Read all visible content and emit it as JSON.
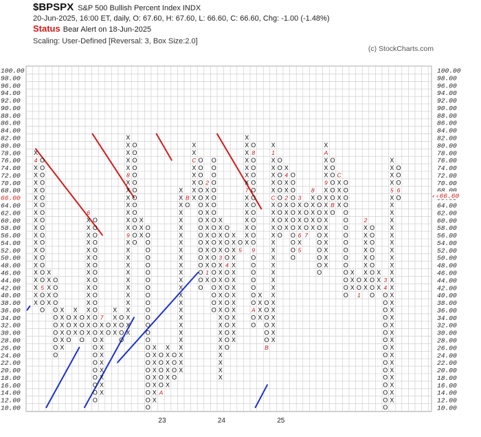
{
  "header": {
    "symbol": "$BPSPX",
    "description": "S&P 500 Bullish Percent Index  INDX",
    "quote": "20-Jun-2025, 16:00 ET, daily, O: 67.60, H: 67.60, L: 66.60, C: 66.60, Chg: -1.00 (-1.48%)",
    "status_label": "Status",
    "status_text": "Bear Alert on 18-Jun-2025",
    "scaling": "Scaling: User-Defined [Reversal: 3, Box Size:2.0]",
    "copyright": "(c) StockCharts.com"
  },
  "chart_data": {
    "type": "point-and-figure",
    "box_size": 2,
    "reversal": 3,
    "ylim": [
      10,
      100
    ],
    "y_ticks": [
      "10.00",
      "12.00",
      "14.00",
      "16.00",
      "18.00",
      "20.00",
      "22.00",
      "24.00",
      "26.00",
      "28.00",
      "30.00",
      "32.00",
      "34.00",
      "36.00",
      "38.00",
      "40.00",
      "42.00",
      "44.00",
      "46.00",
      "48.00",
      "50.00",
      "52.00",
      "54.00",
      "56.00",
      "58.00",
      "60.00",
      "62.00",
      "64.00",
      "66.00",
      "68.00",
      "70.00",
      "72.00",
      "74.00",
      "76.00",
      "78.00",
      "80.00",
      "82.00",
      "84.00",
      "86.00",
      "88.00",
      "90.00",
      "92.00",
      "94.00",
      "96.00",
      "98.00",
      "100.00"
    ],
    "current_label_left": "66.00",
    "current_label_right": "66.60",
    "x_labels": [
      {
        "label": "23",
        "col": 19
      },
      {
        "label": "24",
        "col": 28
      },
      {
        "label": "25",
        "col": 37
      }
    ],
    "columns": [
      {
        "t": "X",
        "from": 38,
        "to": 78,
        "marks": {
          "76": "4"
        }
      },
      {
        "t": "O",
        "from": 36,
        "to": 76,
        "marks": {
          "42": "5"
        }
      },
      {
        "t": "X",
        "from": 38,
        "to": 46
      },
      {
        "t": "O",
        "from": 24,
        "to": 44
      },
      {
        "t": "X",
        "from": 26,
        "to": 36
      },
      {
        "t": "O",
        "from": 28,
        "to": 34
      },
      {
        "t": "X",
        "from": 30,
        "to": 36
      },
      {
        "t": "O",
        "from": 28,
        "to": 34
      },
      {
        "t": "X",
        "from": 30,
        "to": 62,
        "marks": {
          "62": "6"
        }
      },
      {
        "t": "O",
        "from": 12,
        "to": 60
      },
      {
        "t": "X",
        "from": 14,
        "to": 34,
        "marks": {
          "34": "7"
        }
      },
      {
        "t": "O",
        "from": 30,
        "to": 32
      },
      {
        "t": "X",
        "from": 30,
        "to": 36
      },
      {
        "t": "O",
        "from": 28,
        "to": 34
      },
      {
        "t": "X",
        "from": 30,
        "to": 82,
        "marks": {
          "72": "8",
          "56": "9"
        }
      },
      {
        "t": "O",
        "from": 54,
        "to": 80
      },
      {
        "t": "X",
        "from": 56,
        "to": 60
      },
      {
        "t": "O",
        "from": 10,
        "to": 58
      },
      {
        "t": "X",
        "from": 12,
        "to": 26
      },
      {
        "t": "O",
        "from": 14,
        "to": 24,
        "marks": {
          "14": "A"
        }
      },
      {
        "t": "X",
        "from": 16,
        "to": 26
      },
      {
        "t": "O",
        "from": 18,
        "to": 24
      },
      {
        "t": "X",
        "from": 20,
        "to": 68
      },
      {
        "t": "O",
        "from": 64,
        "to": 66,
        "marks": {
          "66": "B"
        }
      },
      {
        "t": "X",
        "from": 66,
        "to": 80,
        "marks": {
          "76": "C"
        }
      },
      {
        "t": "O",
        "from": 42,
        "to": 76
      },
      {
        "t": "X",
        "from": 44,
        "to": 70,
        "marks": {
          "46": "1",
          "70": "2"
        }
      },
      {
        "t": "O",
        "from": 36,
        "to": 76
      },
      {
        "t": "X",
        "from": 18,
        "to": 60,
        "marks": {
          "50": "3"
        }
      },
      {
        "t": "O",
        "from": 26,
        "to": 58,
        "marks": {
          "48": "4"
        }
      },
      {
        "t": "X",
        "from": 28,
        "to": 56
      },
      {
        "t": "O",
        "from": 52,
        "to": 54,
        "marks": {
          "52": "5"
        }
      },
      {
        "t": "X",
        "from": 54,
        "to": 82,
        "marks": {
          "68": "7"
        }
      },
      {
        "t": "O",
        "from": 32,
        "to": 80,
        "marks": {
          "52": "9",
          "78": "8",
          "36": "A"
        }
      },
      {
        "t": "X",
        "from": 34,
        "to": 40
      },
      {
        "t": "O",
        "from": 26,
        "to": 38,
        "marks": {
          "26": "B"
        }
      },
      {
        "t": "X",
        "from": 28,
        "to": 80,
        "marks": {
          "66": "C",
          "78": "1"
        }
      },
      {
        "t": "O",
        "from": 56,
        "to": 76
      },
      {
        "t": "X",
        "from": 58,
        "to": 74,
        "marks": {
          "66": "2",
          "72": "4"
        }
      },
      {
        "t": "O",
        "from": 50,
        "to": 72
      },
      {
        "t": "X",
        "from": 52,
        "to": 66,
        "marks": {
          "66": "3",
          "52": "5",
          "56": "6"
        }
      },
      {
        "t": "O",
        "from": 56,
        "to": 64,
        "marks": {
          "56": "7"
        }
      },
      {
        "t": "X",
        "from": 58,
        "to": 68,
        "marks": {
          "68": "8"
        }
      },
      {
        "t": "O",
        "from": 46,
        "to": 66
      },
      {
        "t": "X",
        "from": 48,
        "to": 80,
        "marks": {
          "70": "9",
          "78": "A"
        }
      },
      {
        "t": "O",
        "from": 62,
        "to": 76,
        "marks": {
          "64": "B"
        }
      },
      {
        "t": "X",
        "from": 64,
        "to": 72,
        "marks": {
          "72": "C"
        }
      },
      {
        "t": "O",
        "from": 40,
        "to": 70
      },
      {
        "t": "X",
        "from": 42,
        "to": 46
      },
      {
        "t": "O",
        "from": 40,
        "to": 44,
        "marks": {
          "40": "1"
        }
      },
      {
        "t": "X",
        "from": 42,
        "to": 60,
        "marks": {
          "60": "2"
        }
      },
      {
        "t": "O",
        "from": 40,
        "to": 58
      },
      {
        "t": "X",
        "from": 42,
        "to": 46
      },
      {
        "t": "O",
        "from": 10,
        "to": 44,
        "marks": {
          "44": "3",
          "42": "4"
        }
      },
      {
        "t": "X",
        "from": 12,
        "to": 76,
        "marks": {
          "68": "5"
        }
      },
      {
        "t": "O",
        "from": 66,
        "to": 74,
        "marks": {
          "68": "6"
        }
      }
    ],
    "trendlines": [
      {
        "color": "#d21a1a",
        "from": {
          "col": 0,
          "val": 79
        },
        "to": {
          "col": 10.1,
          "val": 56
        }
      },
      {
        "color": "#d21a1a",
        "from": {
          "col": 8.6,
          "val": 83
        },
        "to": {
          "col": 14.9,
          "val": 66
        }
      },
      {
        "color": "#d21a1a",
        "from": {
          "col": 18.3,
          "val": 83
        },
        "to": {
          "col": 20.6,
          "val": 76
        }
      },
      {
        "color": "#d21a1a",
        "from": {
          "col": 27.5,
          "val": 83
        },
        "to": {
          "col": 34.2,
          "val": 63
        }
      },
      {
        "color": "#1a2fd1",
        "from": {
          "col": -1.3,
          "val": 36
        },
        "to": {
          "col": -0.9,
          "val": 37
        }
      },
      {
        "color": "#1a2fd1",
        "from": {
          "col": 1.6,
          "val": 10
        },
        "to": {
          "col": 6.6,
          "val": 26
        }
      },
      {
        "color": "#1a2fd1",
        "from": {
          "col": 7.4,
          "val": 10
        },
        "to": {
          "col": 14.9,
          "val": 34
        }
      },
      {
        "color": "#1a2fd1",
        "from": {
          "col": 12.4,
          "val": 22
        },
        "to": {
          "col": 24.6,
          "val": 46
        }
      },
      {
        "color": "#1a2fd1",
        "from": {
          "col": 33.3,
          "val": 10
        },
        "to": {
          "col": 35.1,
          "val": 16
        }
      }
    ],
    "colors": {
      "x": "#111111",
      "o": "#111111",
      "grid": "#c8c8c8",
      "resistance": "#d21a1a",
      "support": "#1a2fd1",
      "month": "#c21818"
    }
  }
}
